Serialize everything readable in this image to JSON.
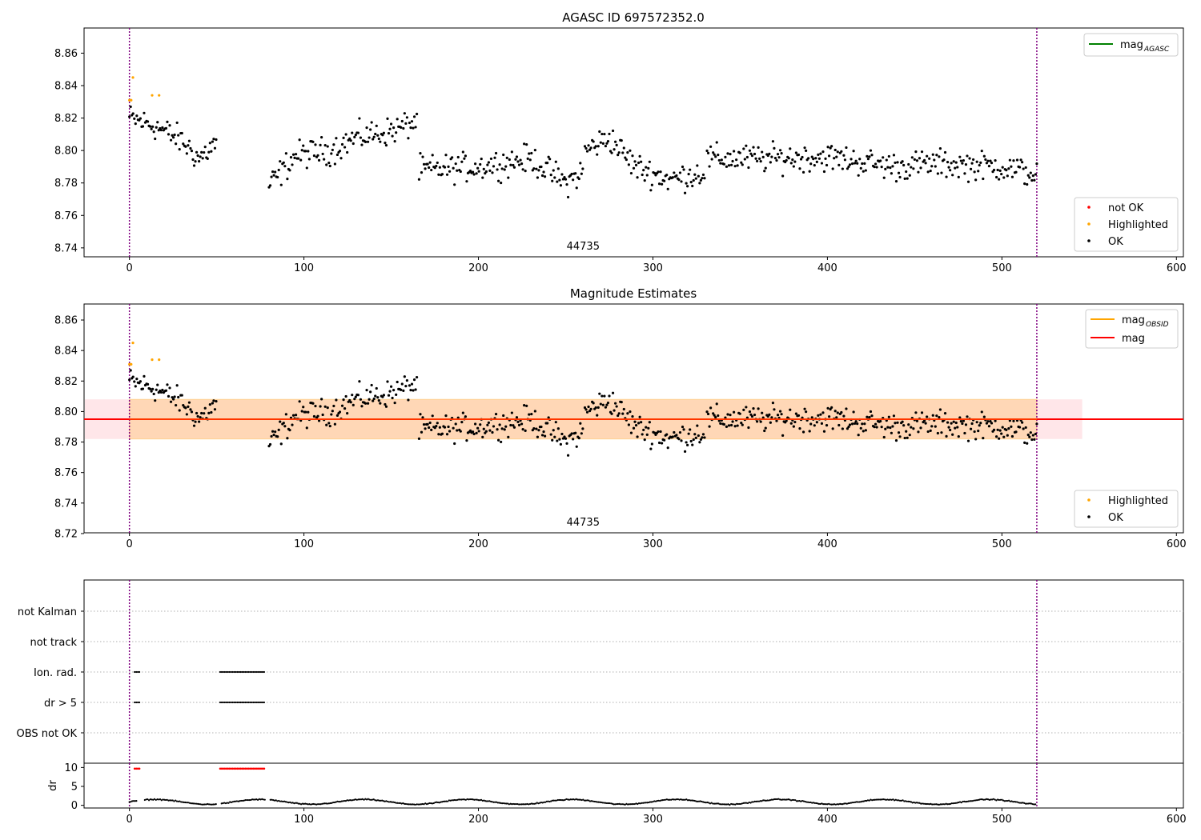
{
  "figure": {
    "top_title": "AGASC ID 697572352.0",
    "middle_title": "Magnitude Estimates"
  },
  "chart_data": [
    {
      "name": "agasc",
      "type": "scatter",
      "title": "AGASC ID 697572352.0",
      "xlim": [
        -26,
        604
      ],
      "ylim": [
        8.7345,
        8.8755
      ],
      "xticks": [
        0,
        100,
        200,
        300,
        400,
        500,
        600
      ],
      "yticks": [
        8.74,
        8.76,
        8.78,
        8.8,
        8.82,
        8.84,
        8.86
      ],
      "ytick_labels": [
        "8.74",
        "8.76",
        "8.78",
        "8.80",
        "8.82",
        "8.84",
        "8.86"
      ],
      "vlines": [
        0,
        520
      ],
      "obsid_label": {
        "text": "44735",
        "x": 260
      },
      "legend_lines": [
        {
          "label": "mag",
          "sub": "AGASC",
          "color": "#008000"
        }
      ],
      "legend_points": [
        {
          "label": "not OK",
          "color": "#ff0000"
        },
        {
          "label": "Highlighted",
          "color": "#ffa500"
        },
        {
          "label": "OK",
          "color": "#000000"
        }
      ],
      "highlighted": [
        [
          0,
          8.831
        ],
        [
          1,
          8.831
        ],
        [
          2,
          8.845
        ],
        [
          13,
          8.834
        ],
        [
          17,
          8.834
        ]
      ]
    },
    {
      "name": "magnitudes",
      "type": "scatter",
      "title": "Magnitude Estimates",
      "xlim": [
        -26,
        604
      ],
      "ylim": [
        8.7205,
        8.8705
      ],
      "xticks": [
        0,
        100,
        200,
        300,
        400,
        500,
        600
      ],
      "yticks": [
        8.72,
        8.74,
        8.76,
        8.78,
        8.8,
        8.82,
        8.84,
        8.86
      ],
      "ytick_labels": [
        "8.72",
        "8.74",
        "8.76",
        "8.78",
        "8.80",
        "8.82",
        "8.84",
        "8.86"
      ],
      "vlines": [
        0,
        520
      ],
      "obsid_label": {
        "text": "44735",
        "x": 260
      },
      "mag": 8.795,
      "band_mag": [
        8.782,
        8.808,
        0,
        546
      ],
      "band_obsid": [
        8.782,
        8.808,
        0,
        520
      ],
      "legend_lines": [
        {
          "label": "mag",
          "sub": "OBSID",
          "color": "#ffa500"
        },
        {
          "label": "mag",
          "sub": "",
          "color": "#ff0000"
        }
      ],
      "legend_points": [
        {
          "label": "Highlighted",
          "color": "#ffa500"
        },
        {
          "label": "OK",
          "color": "#000000"
        }
      ],
      "highlighted": [
        [
          0,
          8.831
        ],
        [
          1,
          8.831
        ],
        [
          2,
          8.845
        ],
        [
          13,
          8.834
        ],
        [
          17,
          8.834
        ]
      ]
    },
    {
      "name": "flags",
      "type": "scatter",
      "xlim": [
        -26,
        604
      ],
      "categories": [
        "not Kalman",
        "not track",
        "Ion. rad.",
        "dr > 5",
        "OBS not OK"
      ],
      "vlines": [
        0,
        520
      ],
      "flag_ranges": {
        "Ion. rad.": [
          [
            3,
            6
          ],
          [
            52,
            78
          ]
        ],
        "dr > 5": [
          [
            3,
            6
          ],
          [
            52,
            78
          ]
        ]
      }
    },
    {
      "name": "dr",
      "type": "scatter",
      "xlim": [
        -26,
        604
      ],
      "ylim": [
        -0.5,
        10.5
      ],
      "ylabel": "dr",
      "xticks": [
        0,
        100,
        200,
        300,
        400,
        500,
        600
      ],
      "yticks": [
        0,
        5,
        10
      ],
      "ytick_labels": [
        "0",
        "5",
        "10"
      ],
      "vlines": [
        0,
        520
      ],
      "clipped": [
        [
          3,
          6
        ],
        [
          52,
          78
        ]
      ],
      "clipped_value": 9.7,
      "gaps": [
        [
          4,
          8
        ],
        [
          50,
          52
        ],
        [
          78,
          80
        ]
      ]
    }
  ],
  "series_colors": {
    "ok": "#000000",
    "highlighted": "#ffa500",
    "not_ok": "#ff0000",
    "vline": "#800080"
  }
}
